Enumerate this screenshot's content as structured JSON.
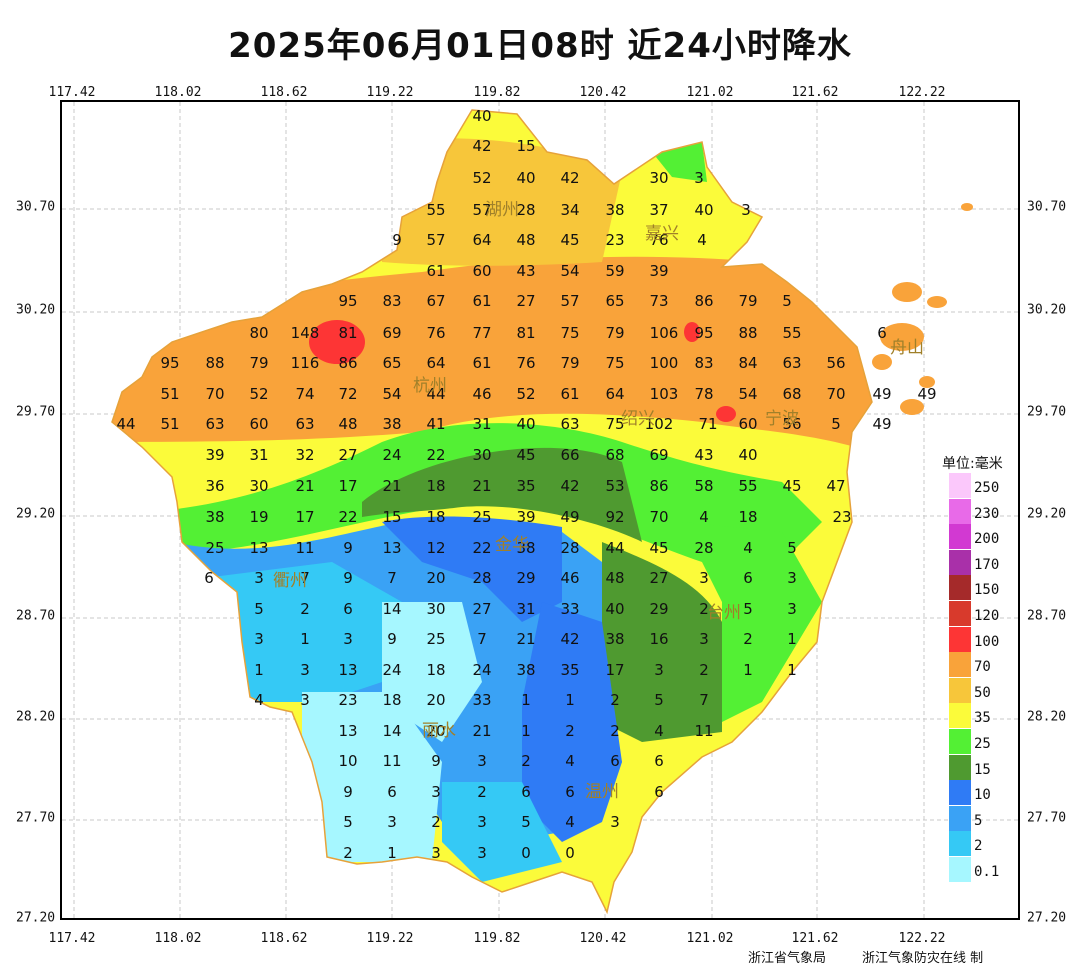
{
  "title": "2025年06月01日08时  近24小时降水",
  "axes": {
    "x_ticks": [
      "117.42",
      "118.02",
      "118.62",
      "119.22",
      "119.82",
      "120.42",
      "121.02",
      "121.62",
      "122.22"
    ],
    "y_ticks": [
      "30.70",
      "30.20",
      "29.70",
      "29.20",
      "28.70",
      "28.20",
      "27.70",
      "27.20"
    ]
  },
  "legend": {
    "title": "单位:毫米",
    "items": [
      {
        "label": "250",
        "color": "#fbc8fb"
      },
      {
        "label": "230",
        "color": "#e86ae8"
      },
      {
        "label": "200",
        "color": "#d239d2"
      },
      {
        "label": "170",
        "color": "#a930a9"
      },
      {
        "label": "150",
        "color": "#a52a2a"
      },
      {
        "label": "120",
        "color": "#d83a2c"
      },
      {
        "label": "100",
        "color": "#fd3535"
      },
      {
        "label": "70",
        "color": "#f9a33a"
      },
      {
        "label": "50",
        "color": "#f7c63a"
      },
      {
        "label": "35",
        "color": "#fbfb3a"
      },
      {
        "label": "25",
        "color": "#53f034"
      },
      {
        "label": "15",
        "color": "#4f9a30"
      },
      {
        "label": "10",
        "color": "#2f7bf5"
      },
      {
        "label": "5",
        "color": "#3aa2f5"
      },
      {
        "label": "2",
        "color": "#35c9f5"
      },
      {
        "label": "0.1",
        "color": "#a6f7ff"
      }
    ]
  },
  "cities": [
    "湖州",
    "嘉兴",
    "杭州",
    "绍兴",
    "宁波",
    "舟山",
    "衢州",
    "金华",
    "台州",
    "丽水",
    "温州"
  ],
  "values": [
    "40",
    "15",
    "42",
    "52",
    "40",
    "42",
    "30",
    "3",
    "55",
    "57",
    "28",
    "34",
    "38",
    "37",
    "40",
    "3",
    "9",
    "57",
    "64",
    "48",
    "45",
    "23",
    "76",
    "4",
    "61",
    "60",
    "43",
    "54",
    "59",
    "39",
    "95",
    "83",
    "67",
    "61",
    "27",
    "57",
    "65",
    "73",
    "86",
    "79",
    "5",
    "80",
    "148",
    "81",
    "69",
    "76",
    "77",
    "81",
    "75",
    "79",
    "106",
    "95",
    "88",
    "55",
    "6",
    "95",
    "88",
    "79",
    "116",
    "86",
    "65",
    "64",
    "61",
    "76",
    "79",
    "75",
    "100",
    "83",
    "84",
    "63",
    "56",
    "51",
    "70",
    "52",
    "74",
    "72",
    "54",
    "44",
    "46",
    "52",
    "61",
    "64",
    "103",
    "78",
    "54",
    "68",
    "70",
    "49",
    "49",
    "44",
    "51",
    "63",
    "60",
    "63",
    "48",
    "38",
    "41",
    "31",
    "40",
    "63",
    "75",
    "102",
    "71",
    "60",
    "56",
    "5",
    "49",
    "39",
    "31",
    "32",
    "27",
    "24",
    "22",
    "30",
    "45",
    "66",
    "68",
    "69",
    "43",
    "40",
    "36",
    "30",
    "21",
    "17",
    "21",
    "18",
    "21",
    "35",
    "42",
    "53",
    "86",
    "58",
    "55",
    "45",
    "47",
    "38",
    "19",
    "17",
    "22",
    "15",
    "18",
    "25",
    "39",
    "49",
    "92",
    "70",
    "4",
    "18",
    "23",
    "25",
    "13",
    "11",
    "9",
    "13",
    "12",
    "22",
    "38",
    "28",
    "44",
    "45",
    "28",
    "4",
    "5",
    "6",
    "3",
    "7",
    "9",
    "7",
    "20",
    "28",
    "29",
    "46",
    "48",
    "27",
    "3",
    "6",
    "3",
    "5",
    "2",
    "6",
    "14",
    "30",
    "27",
    "31",
    "33",
    "40",
    "29",
    "2",
    "5",
    "3",
    "3",
    "1",
    "3",
    "9",
    "25",
    "7",
    "21",
    "42",
    "38",
    "16",
    "3",
    "2",
    "1",
    "1",
    "3",
    "13",
    "24",
    "18",
    "24",
    "38",
    "35",
    "17",
    "3",
    "2",
    "1",
    "1",
    "4",
    "3",
    "23",
    "18",
    "20",
    "33",
    "1",
    "1",
    "2",
    "5",
    "7",
    "13",
    "14",
    "20",
    "21",
    "1",
    "2",
    "2",
    "4",
    "11",
    "10",
    "11",
    "9",
    "3",
    "2",
    "4",
    "6",
    "6",
    "9",
    "6",
    "3",
    "2",
    "6",
    "6",
    "6",
    "5",
    "3",
    "2",
    "3",
    "5",
    "4",
    "3",
    "2",
    "1",
    "3",
    "3",
    "0",
    "0"
  ],
  "credits": {
    "bureau": "浙江省气象局",
    "site": "浙江气象防灾在线 制"
  }
}
